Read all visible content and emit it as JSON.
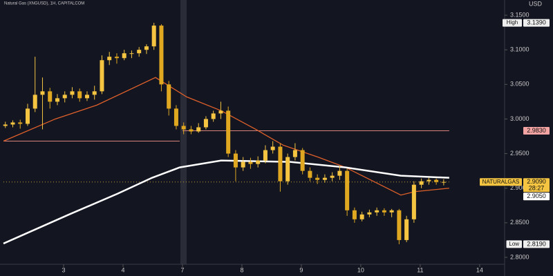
{
  "chart_data": {
    "type": "candlestick",
    "title": "Natural Gas (XNGUSD), 1H, CAPITALCOM",
    "currency": "USD",
    "background": "#131521",
    "up_color": "#f5c542",
    "down_color": "#e0a820",
    "xlim": [
      -0.07,
      8.42
    ],
    "xticks": [
      {
        "value": 1,
        "label": "3"
      },
      {
        "value": 2,
        "label": "4"
      },
      {
        "value": 3,
        "label": "7"
      },
      {
        "value": 4,
        "label": "8"
      },
      {
        "value": 5,
        "label": "9"
      },
      {
        "value": 6,
        "label": "10"
      },
      {
        "value": 7,
        "label": "11"
      },
      {
        "value": 8,
        "label": "14"
      }
    ],
    "ylim": [
      2.79,
      3.172
    ],
    "yticks": [
      {
        "value": 2.8,
        "label": "2.8000"
      },
      {
        "value": 2.85,
        "label": "2.8500"
      },
      {
        "value": 2.9,
        "label": "2.9000"
      },
      {
        "value": 2.95,
        "label": "2.9500"
      },
      {
        "value": 3.0,
        "label": "3.0000"
      },
      {
        "value": 3.05,
        "label": "3.0500"
      },
      {
        "value": 3.1,
        "label": "3.1000"
      },
      {
        "value": 3.15,
        "label": "3.1500"
      }
    ],
    "x": [
      0.02,
      0.145,
      0.27,
      0.395,
      0.52,
      0.645,
      0.77,
      0.895,
      1.02,
      1.145,
      1.27,
      1.395,
      1.52,
      1.645,
      1.77,
      1.895,
      2.02,
      2.145,
      2.27,
      2.395,
      2.52,
      2.645,
      2.77,
      2.895,
      3.02,
      3.145,
      3.27,
      3.395,
      3.52,
      3.645,
      3.77,
      3.895,
      4.02,
      4.145,
      4.27,
      4.395,
      4.52,
      4.645,
      4.77,
      4.895,
      5.02,
      5.145,
      5.27,
      5.395,
      5.52,
      5.645,
      5.77,
      5.895,
      6.02,
      6.145,
      6.27,
      6.395,
      6.52,
      6.645,
      6.77,
      6.895,
      7.02,
      7.145,
      7.27,
      7.395
    ],
    "open": [
      2.99,
      2.992,
      2.995,
      2.993,
      3.015,
      3.035,
      3.04,
      3.025,
      3.03,
      3.035,
      3.04,
      3.03,
      3.035,
      3.04,
      3.085,
      3.09,
      3.088,
      3.095,
      3.095,
      3.1,
      3.105,
      3.135,
      3.05,
      3.015,
      2.99,
      2.985,
      2.982,
      2.988,
      3.0,
      3.008,
      3.012,
      2.95,
      2.93,
      2.938,
      2.935,
      2.94,
      2.955,
      2.96,
      2.91,
      2.945,
      2.955,
      2.925,
      2.915,
      2.912,
      2.915,
      2.918,
      2.925,
      2.868,
      2.855,
      2.862,
      2.865,
      2.868,
      2.865,
      2.868,
      2.825,
      2.855,
      2.905,
      2.91,
      2.912,
      2.909
    ],
    "high": [
      2.996,
      2.998,
      2.999,
      3.022,
      3.09,
      3.06,
      3.045,
      3.036,
      3.04,
      3.046,
      3.044,
      3.04,
      3.048,
      3.092,
      3.097,
      3.095,
      3.1,
      3.099,
      3.104,
      3.108,
      3.139,
      3.137,
      3.055,
      3.02,
      2.995,
      2.99,
      2.994,
      3.004,
      3.012,
      3.025,
      3.018,
      2.955,
      2.945,
      2.944,
      2.946,
      2.962,
      2.968,
      2.965,
      2.95,
      2.965,
      2.958,
      2.93,
      2.92,
      2.92,
      2.923,
      2.932,
      2.928,
      2.872,
      2.866,
      2.869,
      2.872,
      2.871,
      2.87,
      2.87,
      2.86,
      2.91,
      2.914,
      2.915,
      2.914,
      2.913
    ],
    "low": [
      2.987,
      2.988,
      2.986,
      2.99,
      3.01,
      2.985,
      3.015,
      3.02,
      3.024,
      3.03,
      3.025,
      3.026,
      3.028,
      3.036,
      3.078,
      3.08,
      3.085,
      3.088,
      3.09,
      3.094,
      3.1,
      3.04,
      3.005,
      2.985,
      2.978,
      2.978,
      2.98,
      2.985,
      2.996,
      3.0,
      2.945,
      2.91,
      2.925,
      2.928,
      2.93,
      2.936,
      2.95,
      2.895,
      2.905,
      2.94,
      2.92,
      2.91,
      2.906,
      2.908,
      2.91,
      2.912,
      2.86,
      2.85,
      2.852,
      2.858,
      2.86,
      2.86,
      2.858,
      2.819,
      2.822,
      2.85,
      2.9,
      2.905,
      2.905,
      2.904
    ],
    "close": [
      2.992,
      2.995,
      2.993,
      3.015,
      3.035,
      3.04,
      3.025,
      3.03,
      3.035,
      3.04,
      3.03,
      3.035,
      3.04,
      3.085,
      3.09,
      3.088,
      3.095,
      3.095,
      3.1,
      3.105,
      3.135,
      3.05,
      3.015,
      2.99,
      2.985,
      2.982,
      2.988,
      3.0,
      3.008,
      3.012,
      2.95,
      2.93,
      2.938,
      2.935,
      2.94,
      2.955,
      2.96,
      2.91,
      2.945,
      2.955,
      2.925,
      2.915,
      2.912,
      2.915,
      2.918,
      2.925,
      2.868,
      2.855,
      2.862,
      2.865,
      2.868,
      2.865,
      2.868,
      2.825,
      2.855,
      2.905,
      2.91,
      2.912,
      2.909,
      2.909
    ],
    "moving_averages": [
      {
        "color": "#e0602a",
        "x": [
          -0.012,
          0.86,
          1.558,
          2.546,
          3.07,
          3.651,
          4.233,
          4.698,
          5.279,
          5.744,
          6.326,
          6.674,
          6.907,
          7.488
        ],
        "values": [
          2.968,
          3.0,
          3.02,
          3.06,
          3.032,
          3.012,
          2.985,
          2.962,
          2.945,
          2.93,
          2.905,
          2.89,
          2.895,
          2.9
        ]
      },
      {
        "color": "#ffffff",
        "x": [
          -0.012,
          1.093,
          1.907,
          2.488,
          2.953,
          3.651,
          4.814,
          5.744,
          6.674,
          7.488
        ],
        "values": [
          2.82,
          2.862,
          2.892,
          2.915,
          2.93,
          2.94,
          2.938,
          2.93,
          2.918,
          2.915
        ]
      }
    ],
    "levels": [
      {
        "value": 2.983,
        "x": [
          3.0,
          7.488
        ],
        "color": "#d9847a",
        "style": "solid"
      },
      {
        "value": 2.968,
        "x": [
          -0.012,
          2.953
        ],
        "color": "#d9847a",
        "style": "solid"
      },
      {
        "value": 2.909,
        "x": [
          -0.012,
          7.488
        ],
        "color": "#c9a232",
        "style": "dotted"
      }
    ],
    "price_labels": [
      {
        "name": "High",
        "value": 3.139,
        "label": "3.1390",
        "color": "#eeeeee"
      },
      {
        "value": 2.983,
        "label": "2.9830",
        "color": "#f4a3a3"
      },
      {
        "name": "NATURALGAS",
        "value": 2.909,
        "label": "2.9090",
        "countdown": "28:27",
        "color": "#f5c542"
      },
      {
        "value": 2.905,
        "label": "2.9050",
        "color": "#ffffff"
      },
      {
        "name": "Low",
        "value": 2.819,
        "label": "2.8190",
        "color": "#eeeeee"
      }
    ]
  }
}
